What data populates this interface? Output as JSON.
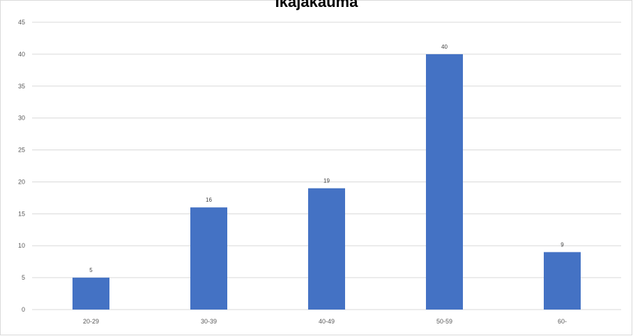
{
  "chart_data": {
    "type": "bar",
    "title": "Ikäjakauma",
    "categories": [
      "20-29",
      "30-39",
      "40-49",
      "50-59",
      "60-"
    ],
    "values": [
      5,
      16,
      19,
      40,
      9
    ],
    "ylim": [
      0,
      45
    ],
    "ytick_step": 5,
    "grid": true,
    "data_labels": true,
    "xlabel": "",
    "ylabel": "",
    "bar_color": "#4472C4",
    "grid_color": "#d9d9d9"
  }
}
